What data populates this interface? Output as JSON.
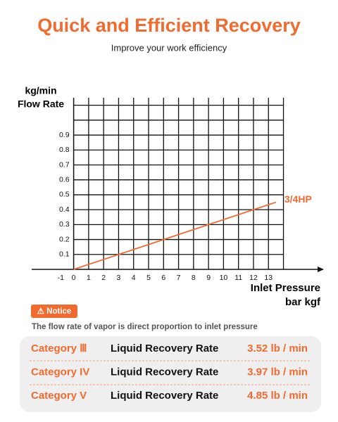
{
  "header": {
    "title": "Quick and Efficient Recovery",
    "subtitle": "Improve your work efficiency"
  },
  "chart_data": {
    "type": "line",
    "y_label_unit": "kg/min",
    "y_label": "Flow Rate",
    "x_label": "Inlet Pressure",
    "x_label_unit": "bar kgf",
    "x": [
      0,
      13.5
    ],
    "series": [
      {
        "name": "3/4HP",
        "color": "#f26a2e",
        "values": [
          0,
          0.45
        ]
      }
    ],
    "xlim": [
      -2.8,
      16.7
    ],
    "ylim": [
      0,
      1.15
    ],
    "xticks": [
      -1,
      0,
      1,
      2,
      3,
      4,
      5,
      6,
      7,
      8,
      9,
      10,
      11,
      12,
      13
    ],
    "yticks": [
      0.1,
      0.2,
      0.3,
      0.4,
      0.5,
      0.6,
      0.7,
      0.8,
      0.9
    ],
    "grid": true
  },
  "notice": {
    "badge": "⚠ Notice",
    "text": "The flow rate of vapor is direct proportion to inlet pressure"
  },
  "table": {
    "rows": [
      [
        "Category Ⅲ",
        "Liquid Recovery Rate",
        "3.52 lb / min"
      ],
      [
        "Category IV",
        "Liquid Recovery Rate",
        "3.97 lb / min"
      ],
      [
        "Category V",
        "Liquid Recovery Rate",
        "4.85 lb / min"
      ]
    ]
  }
}
